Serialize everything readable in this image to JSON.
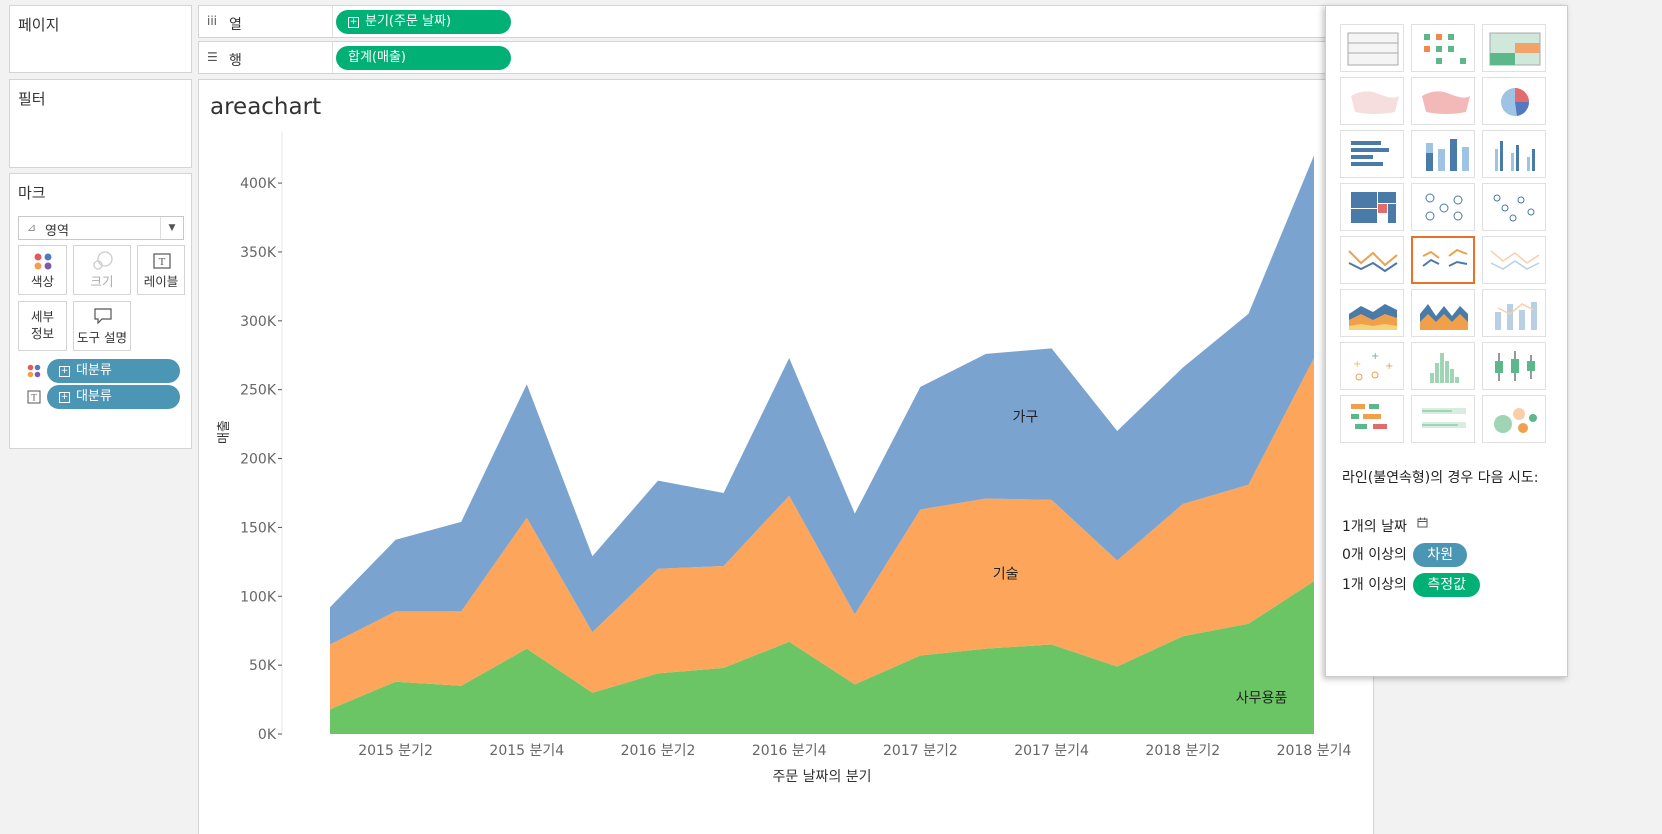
{
  "panels": {
    "pages_title": "페이지",
    "filters_title": "필터",
    "marks_title": "마크"
  },
  "marks": {
    "type_label": "영역",
    "buttons": {
      "color": "색상",
      "size": "크기",
      "label": "레이블",
      "detail": "세부\n정보",
      "tooltip": "도구 설명"
    },
    "fields": [
      {
        "icon": "color-icon",
        "label": "대분류"
      },
      {
        "icon": "label-icon",
        "label": "대분류"
      }
    ]
  },
  "shelves": {
    "columns": {
      "label": "열",
      "pill": "분기(주문 날짜)"
    },
    "rows": {
      "label": "행",
      "pill": "합계(매출)"
    }
  },
  "sheet": {
    "title": "areachart"
  },
  "chart_data": {
    "type": "area",
    "title": "areachart",
    "xlabel": "주문 날짜의 분기",
    "ylabel": "매출",
    "x_tick_labels": [
      "2015 분기2",
      "2015 분기4",
      "2016 분기2",
      "2016 분기4",
      "2017 분기2",
      "2017 분기4",
      "2018 분기2",
      "2018 분기4"
    ],
    "y_tick_labels": [
      "0K",
      "50K",
      "100K",
      "150K",
      "200K",
      "250K",
      "300K",
      "350K",
      "400K"
    ],
    "ylim": [
      0,
      440000
    ],
    "stacked": true,
    "x": [
      "2015 분기1",
      "2015 분기2",
      "2015 분기3",
      "2015 분기4",
      "2016 분기1",
      "2016 분기2",
      "2016 분기3",
      "2016 분기4",
      "2017 분기1",
      "2017 분기2",
      "2017 분기3",
      "2017 분기4",
      "2018 분기1",
      "2018 분기2",
      "2018 분기3",
      "2018 분기4"
    ],
    "series": [
      {
        "name": "사무용품",
        "color": "#6cc565",
        "values": [
          18000,
          38000,
          35000,
          62000,
          30000,
          44000,
          48000,
          67000,
          36000,
          57000,
          62000,
          65000,
          49000,
          71000,
          80000,
          111000
        ]
      },
      {
        "name": "기술",
        "color": "#fda55a",
        "values": [
          47000,
          51000,
          54000,
          95000,
          44000,
          76000,
          74000,
          106000,
          51000,
          106000,
          109000,
          105000,
          77000,
          96000,
          101000,
          162000
        ]
      },
      {
        "name": "가구",
        "color": "#7aa3d0",
        "values": [
          27000,
          52000,
          65000,
          97000,
          55000,
          64000,
          53000,
          100000,
          73000,
          89000,
          105000,
          110000,
          94000,
          99000,
          124000,
          147000
        ]
      }
    ]
  },
  "showme": {
    "hint_title": "라인(불연속형)의 경우 다음 시도:",
    "hint_lines": [
      {
        "prefix": "1개의 날짜",
        "icon": "calendar-icon"
      },
      {
        "prefix": "0개 이상의",
        "pill": "차원",
        "pill_color": "#4b96b5"
      },
      {
        "prefix": "1개 이상의",
        "pill": "측정값",
        "pill_color": "#00b074"
      }
    ],
    "tiles": [
      "text-table",
      "heat-map",
      "highlight-table",
      "symbol-map",
      "filled-map",
      "pie-chart",
      "horizontal-bars",
      "stacked-bars",
      "side-by-side-bars",
      "treemap",
      "circle-view",
      "side-by-side-circles",
      "continuous-lines",
      "discrete-lines",
      "dual-lines",
      "continuous-area",
      "discrete-area",
      "dual-combination",
      "scatter-plot",
      "histogram",
      "box-whisker",
      "gantt-chart",
      "bullet-graph",
      "packed-bubbles"
    ],
    "selected_tile": "discrete-lines"
  }
}
